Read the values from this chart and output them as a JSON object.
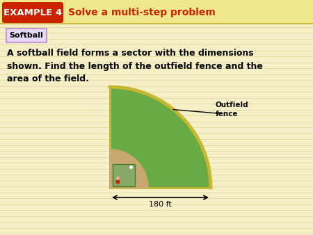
{
  "background_color": "#f5f0c8",
  "example_badge_color": "#cc2200",
  "example_badge_text": "EXAMPLE 4",
  "example_badge_text_color": "#ffffff",
  "header_title": "Solve a multi-step problem",
  "header_title_color": "#cc2200",
  "tag_text": "Softball",
  "tag_bg": "#e8d8f8",
  "tag_border": "#bb88cc",
  "body_text": "A softball field forms a sector with the dimensions\nshown. Find the length of the outfield fence and the\narea of the field.",
  "body_text_color": "#000000",
  "field_green": "#6aaa44",
  "field_border_color": "#c8b830",
  "infield_color": "#c8a870",
  "square_color": "#88aa66",
  "square_border": "#4a7a30",
  "dim_label": "180 ft",
  "outfield_label": "Outfield\nfence",
  "line_color": "#ddcc55",
  "fig_width": 4.5,
  "fig_height": 3.38,
  "dpi": 100
}
